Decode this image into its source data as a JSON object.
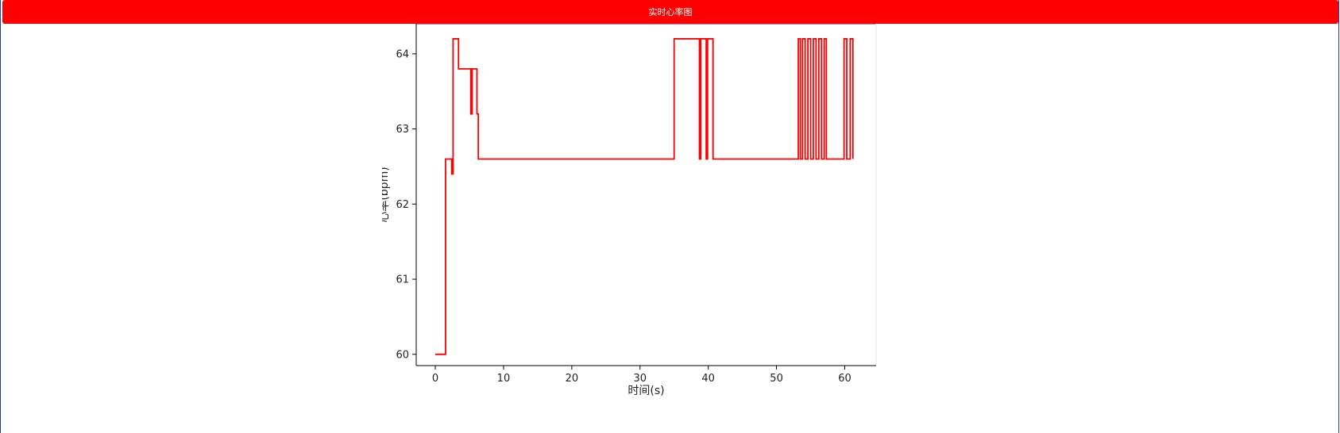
{
  "header": {
    "title": "实时心率图"
  },
  "colors": {
    "header_bg": "#ff0000",
    "header_text": "#ffffff",
    "line": "#ff0000",
    "axis": "#000000"
  },
  "chart_data": {
    "type": "line",
    "title": "",
    "xlabel": "时间(s)",
    "ylabel": "心率(bpm)",
    "xlim": [
      -2.8,
      64.6
    ],
    "ylim": [
      59.85,
      64.4
    ],
    "xticks": [
      0,
      10,
      20,
      30,
      40,
      50,
      60
    ],
    "yticks": [
      60,
      61,
      62,
      63,
      64
    ],
    "grid": false,
    "series": [
      {
        "step": true,
        "x": [
          0,
          1.5,
          2.4,
          2.6,
          2.7,
          3.4,
          5.2,
          5.4,
          6.1,
          6.3,
          35.0,
          38.7,
          38.9,
          39.7,
          39.9,
          40.7,
          53.2,
          53.5,
          53.8,
          54.2,
          54.6,
          55.0,
          55.4,
          55.8,
          56.2,
          56.6,
          57.0,
          57.3,
          59.9,
          60.3,
          60.8,
          61.2
        ],
        "y": [
          60.0,
          62.6,
          62.4,
          64.2,
          64.2,
          63.8,
          63.2,
          63.8,
          63.2,
          62.6,
          64.2,
          62.6,
          64.2,
          62.6,
          64.2,
          62.6,
          64.2,
          62.6,
          64.2,
          62.6,
          64.2,
          62.6,
          64.2,
          62.6,
          64.2,
          62.6,
          64.2,
          62.6,
          64.2,
          62.6,
          64.2,
          62.6
        ]
      }
    ]
  }
}
